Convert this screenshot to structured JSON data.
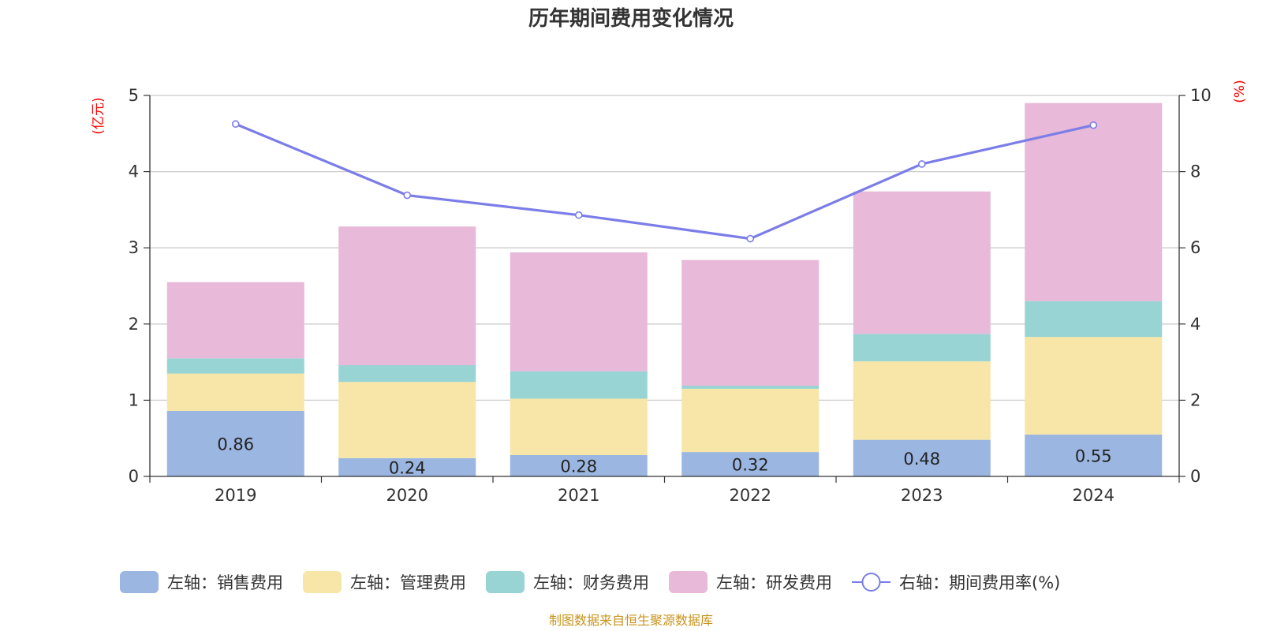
{
  "chart_data": {
    "type": "bar",
    "stacked": true,
    "title": "历年期间费用变化情况",
    "categories": [
      "2019",
      "2020",
      "2021",
      "2022",
      "2023",
      "2024"
    ],
    "left_axis": {
      "unit": "(亿元)",
      "ylim": [
        0,
        5
      ],
      "ticks": [
        "0",
        "1",
        "2",
        "3",
        "4",
        "5"
      ]
    },
    "right_axis": {
      "unit": "(%)",
      "ylim": [
        0,
        10
      ],
      "ticks": [
        "0",
        "2",
        "4",
        "6",
        "8",
        "10"
      ]
    },
    "series": [
      {
        "name": "左轴：销售费用",
        "axis": "left",
        "type": "bar",
        "color": "#9bb6e0",
        "values": [
          0.86,
          0.24,
          0.28,
          0.32,
          0.48,
          0.55
        ],
        "labels": [
          "0.86",
          "0.24",
          "0.28",
          "0.32",
          "0.48",
          "0.55"
        ]
      },
      {
        "name": "左轴：管理费用",
        "axis": "left",
        "type": "bar",
        "color": "#f7e6a8",
        "values": [
          0.49,
          1.0,
          0.74,
          0.83,
          1.03,
          1.28
        ]
      },
      {
        "name": "左轴：财务费用",
        "axis": "left",
        "type": "bar",
        "color": "#98d4d3",
        "values": [
          0.2,
          0.22,
          0.36,
          0.04,
          0.36,
          0.47
        ]
      },
      {
        "name": "左轴：研发费用",
        "axis": "left",
        "type": "bar",
        "color": "#e8b9d8",
        "values": [
          1.0,
          1.82,
          1.56,
          1.65,
          1.87,
          2.6
        ]
      },
      {
        "name": "右轴：期间费用率(%)",
        "axis": "right",
        "type": "line",
        "color": "#7b7de8",
        "values": [
          9.25,
          7.38,
          6.86,
          6.24,
          8.2,
          9.22
        ]
      }
    ],
    "legend_position": "bottom",
    "grid": true
  },
  "source_note": "制图数据来自恒生聚源数据库"
}
